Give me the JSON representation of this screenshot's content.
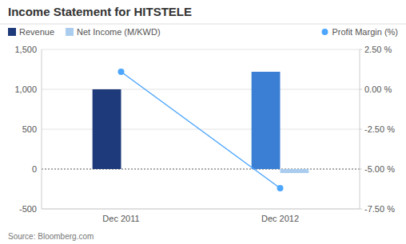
{
  "chart_data": {
    "type": "bar",
    "title": "Income Statement for HITSTELE",
    "annotations": [
      "Source: Bloomberg.com"
    ],
    "categories": [
      "Dec 2011",
      "Dec 2012"
    ],
    "series": [
      {
        "name": "Revenue",
        "type": "bar",
        "colors": [
          "#1F3A7A",
          "#3A7FD4"
        ],
        "values": [
          1000,
          1220
        ]
      },
      {
        "name": "Net Income (M/KWD)",
        "type": "bar",
        "color": "#AACCEE",
        "values": [
          0,
          -50
        ]
      },
      {
        "name": "Profit Margin (%)",
        "type": "line",
        "axis": "y2",
        "color": "#4DA6FF",
        "marker": "circle",
        "values": [
          1.1,
          -6.2
        ]
      }
    ],
    "ylim": [
      -500,
      1500
    ],
    "yticks": [
      -500,
      0,
      500,
      {
        "value": 1000,
        "label": "1,000"
      },
      {
        "value": 1500,
        "label": "1,500"
      }
    ],
    "y2lim": [
      -7.5,
      2.5
    ],
    "y2ticks": [
      {
        "value": -7.5,
        "label": "-7.50 %"
      },
      {
        "value": -5.0,
        "label": "-5.00 %"
      },
      {
        "value": -2.5,
        "label": "-2.50 %"
      },
      {
        "value": 0,
        "label": "0.00 %"
      },
      {
        "value": 2.5,
        "label": "2.50 %"
      }
    ],
    "grid": true,
    "legend": "top"
  }
}
